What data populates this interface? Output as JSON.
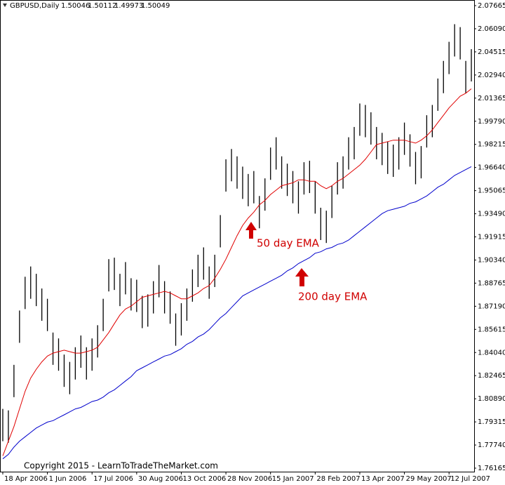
{
  "chart_data": {
    "type": "ohlc",
    "title": "GBPUSD,Daily",
    "header_values": [
      1.50046,
      1.50112,
      1.49973,
      1.50049
    ],
    "annotations": [
      "50 day EMA",
      "200 day EMA"
    ],
    "copyright": "Copyright 2015 - LearnToTradeTheMarket.com",
    "bar_color": "#000000",
    "categories": [
      "18 Apr 2006",
      null,
      null,
      null,
      null,
      null,
      null,
      null,
      "1 Jun 2006",
      null,
      null,
      null,
      null,
      null,
      null,
      null,
      "17 Jul 2006",
      null,
      null,
      null,
      null,
      null,
      null,
      null,
      "30 Aug 2006",
      null,
      null,
      null,
      null,
      null,
      null,
      null,
      "13 Oct 2006",
      null,
      null,
      null,
      null,
      null,
      null,
      null,
      "28 Nov 2006",
      null,
      null,
      null,
      null,
      null,
      null,
      null,
      "15 Jan 2007",
      null,
      null,
      null,
      null,
      null,
      null,
      null,
      "28 Feb 2007",
      null,
      null,
      null,
      null,
      null,
      null,
      null,
      "13 Apr 2007",
      null,
      null,
      null,
      null,
      null,
      null,
      null,
      "29 May 2007",
      null,
      null,
      null,
      null,
      null,
      null,
      null,
      "12 Jul 2007",
      null,
      null,
      null,
      null
    ],
    "high": [
      1.802,
      1.801,
      1.832,
      1.869,
      1.892,
      1.899,
      1.894,
      1.884,
      1.877,
      1.854,
      1.85,
      1.839,
      1.834,
      1.844,
      1.852,
      1.844,
      1.85,
      1.859,
      1.877,
      1.904,
      1.905,
      1.894,
      1.902,
      1.891,
      1.89,
      1.879,
      1.88,
      1.889,
      1.9,
      1.889,
      1.882,
      1.867,
      1.874,
      1.884,
      1.897,
      1.907,
      1.912,
      1.899,
      1.907,
      1.934,
      1.972,
      1.979,
      1.974,
      1.967,
      1.962,
      1.964,
      1.947,
      1.959,
      1.98,
      1.987,
      1.974,
      1.969,
      1.964,
      1.957,
      1.97,
      1.971,
      1.957,
      1.939,
      1.937,
      1.954,
      1.97,
      1.974,
      1.987,
      1.994,
      2.01,
      2.009,
      2.004,
      1.994,
      1.99,
      1.984,
      1.982,
      1.987,
      1.997,
      1.989,
      1.977,
      1.981,
      2.002,
      2.009,
      2.027,
      2.039,
      2.052,
      2.064,
      2.062,
      2.039,
      2.047
    ],
    "low": [
      1.78,
      1.779,
      1.81,
      1.847,
      1.87,
      1.877,
      1.872,
      1.862,
      1.855,
      1.832,
      1.828,
      1.817,
      1.812,
      1.822,
      1.83,
      1.822,
      1.828,
      1.837,
      1.855,
      1.882,
      1.883,
      1.872,
      1.88,
      1.869,
      1.868,
      1.857,
      1.858,
      1.867,
      1.878,
      1.867,
      1.86,
      1.845,
      1.852,
      1.862,
      1.875,
      1.885,
      1.89,
      1.877,
      1.885,
      1.912,
      1.95,
      1.957,
      1.952,
      1.945,
      1.94,
      1.942,
      1.925,
      1.937,
      1.958,
      1.965,
      1.952,
      1.947,
      1.942,
      1.935,
      1.948,
      1.949,
      1.935,
      1.917,
      1.915,
      1.932,
      1.948,
      1.952,
      1.965,
      1.972,
      1.988,
      1.987,
      1.982,
      1.972,
      1.968,
      1.962,
      1.96,
      1.965,
      1.975,
      1.967,
      1.955,
      1.959,
      1.98,
      1.987,
      2.005,
      2.017,
      2.03,
      2.042,
      2.04,
      2.017,
      2.025
    ],
    "lines": [
      {
        "color": "#e00000",
        "values": [
          1.77,
          1.78,
          1.79,
          1.802,
          1.814,
          1.823,
          1.829,
          1.834,
          1.838,
          1.84,
          1.841,
          1.842,
          1.841,
          1.84,
          1.84,
          1.841,
          1.842,
          1.844,
          1.849,
          1.854,
          1.86,
          1.866,
          1.87,
          1.872,
          1.875,
          1.878,
          1.879,
          1.88,
          1.881,
          1.882,
          1.881,
          1.879,
          1.877,
          1.877,
          1.879,
          1.881,
          1.884,
          1.886,
          1.891,
          1.897,
          1.904,
          1.912,
          1.92,
          1.927,
          1.932,
          1.936,
          1.941,
          1.944,
          1.948,
          1.951,
          1.954,
          1.955,
          1.956,
          1.958,
          1.958,
          1.957,
          1.957,
          1.954,
          1.952,
          1.954,
          1.957,
          1.959,
          1.962,
          1.965,
          1.968,
          1.972,
          1.977,
          1.982,
          1.983,
          1.984,
          1.985,
          1.985,
          1.985,
          1.984,
          1.983,
          1.985,
          1.988,
          1.992,
          1.997,
          2.002,
          2.007,
          2.011,
          2.015,
          2.017,
          2.02
        ]
      },
      {
        "color": "#0000cc",
        "values": [
          1.768,
          1.771,
          1.776,
          1.78,
          1.783,
          1.786,
          1.789,
          1.791,
          1.793,
          1.794,
          1.796,
          1.798,
          1.8,
          1.802,
          1.803,
          1.805,
          1.807,
          1.808,
          1.81,
          1.813,
          1.815,
          1.818,
          1.821,
          1.824,
          1.828,
          1.83,
          1.832,
          1.834,
          1.836,
          1.838,
          1.839,
          1.841,
          1.843,
          1.846,
          1.848,
          1.851,
          1.853,
          1.856,
          1.86,
          1.864,
          1.867,
          1.871,
          1.875,
          1.879,
          1.881,
          1.883,
          1.885,
          1.887,
          1.889,
          1.891,
          1.893,
          1.896,
          1.898,
          1.901,
          1.903,
          1.905,
          1.908,
          1.909,
          1.911,
          1.912,
          1.914,
          1.915,
          1.917,
          1.92,
          1.923,
          1.926,
          1.929,
          1.932,
          1.935,
          1.937,
          1.938,
          1.939,
          1.94,
          1.942,
          1.943,
          1.945,
          1.947,
          1.95,
          1.953,
          1.955,
          1.958,
          1.961,
          1.963,
          1.965,
          1.967
        ]
      }
    ],
    "ylim": [
      1.76165,
      2.07665
    ],
    "yticks": [
      2.07665,
      {
        "value": 2.0609,
        "label": "2.06090"
      },
      2.04515,
      {
        "value": 2.0294,
        "label": "2.02940"
      },
      2.01365,
      {
        "value": 1.9979,
        "label": "1.99790"
      },
      1.98215,
      {
        "value": 1.9664,
        "label": "1.96640"
      },
      1.95065,
      {
        "value": 1.9349,
        "label": "1.93490"
      },
      1.91915,
      {
        "value": 1.9034,
        "label": "1.90340"
      },
      1.88765,
      {
        "value": 1.8719,
        "label": "1.87190"
      },
      1.85615,
      {
        "value": 1.8404,
        "label": "1.84040"
      },
      1.82465,
      {
        "value": 1.8089,
        "label": "1.80890"
      },
      1.79315,
      {
        "value": 1.7774,
        "label": "1.77740"
      },
      1.76165
    ]
  }
}
